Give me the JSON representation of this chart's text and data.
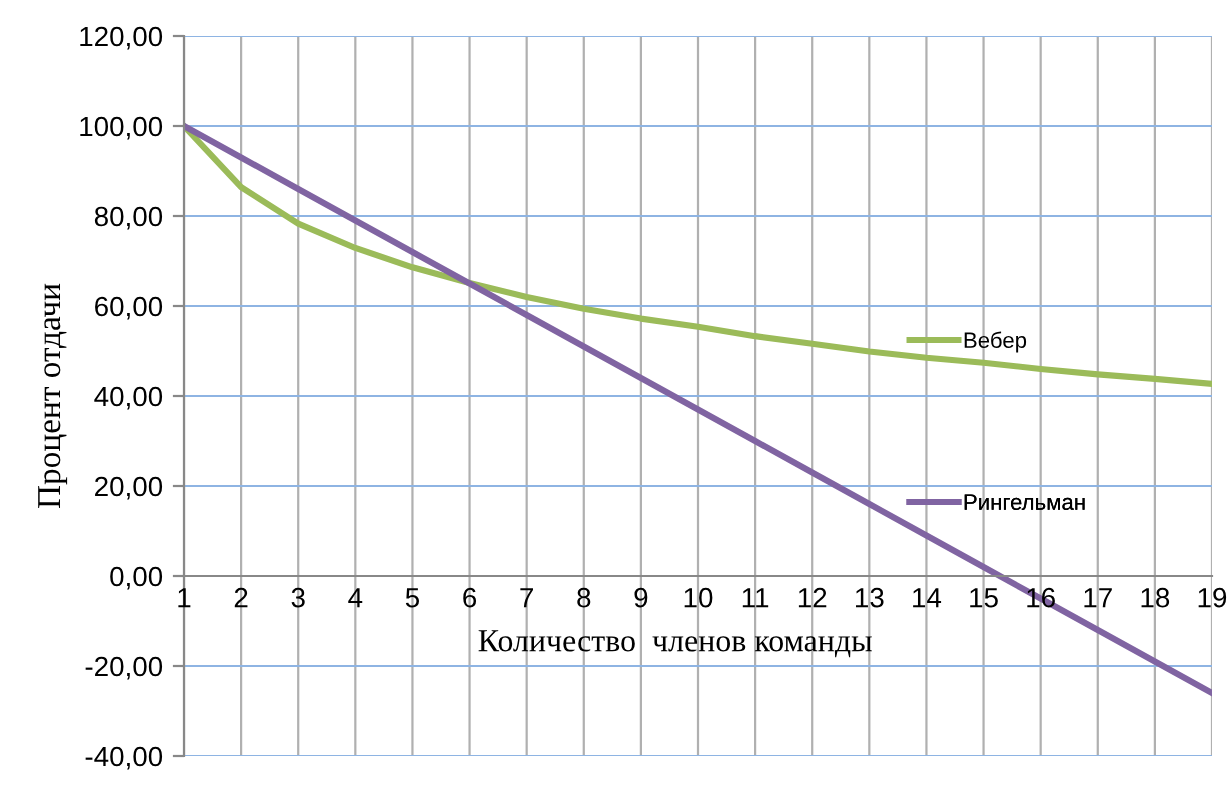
{
  "chart_data": {
    "type": "line",
    "xlabel": "Количество  членов команды",
    "ylabel": "Процент отдачи",
    "x": [
      1,
      2,
      3,
      4,
      5,
      6,
      7,
      8,
      9,
      10,
      11,
      12,
      13,
      14,
      15,
      16,
      17,
      18,
      19
    ],
    "series": [
      {
        "name": "Вебер",
        "color": "#9bbb59",
        "values": [
          100,
          86.4,
          78.3,
          72.9,
          68.6,
          65.1,
          62,
          59.4,
          57.2,
          55.4,
          53.3,
          51.6,
          49.9,
          48.5,
          47.4,
          46,
          44.8,
          43.8,
          42.7
        ]
      },
      {
        "name": "Рингельман",
        "color": "#8064a2",
        "values": [
          100,
          93,
          86,
          79,
          72,
          65,
          58,
          51,
          44,
          37,
          30,
          23,
          16,
          9,
          2,
          -5,
          -12,
          -19,
          -26
        ]
      }
    ],
    "xlim": [
      1,
      19
    ],
    "xticks": [
      1,
      2,
      3,
      4,
      5,
      6,
      7,
      8,
      9,
      10,
      11,
      12,
      13,
      14,
      15,
      16,
      17,
      18,
      19
    ],
    "ylim": [
      -40,
      120
    ],
    "yticks": [
      {
        "value": -40,
        "label": "-40,00"
      },
      {
        "value": -20,
        "label": "-20,00"
      },
      {
        "value": 0,
        "label": "0,00"
      },
      {
        "value": 20,
        "label": "20,00"
      },
      {
        "value": 40,
        "label": "40,00"
      },
      {
        "value": 60,
        "label": "60,00"
      },
      {
        "value": 80,
        "label": "80,00"
      },
      {
        "value": 100,
        "label": "100,00"
      },
      {
        "value": 120,
        "label": "120,00"
      }
    ],
    "grid": true,
    "legend": "right",
    "marker": "none",
    "line_style": "solid"
  }
}
